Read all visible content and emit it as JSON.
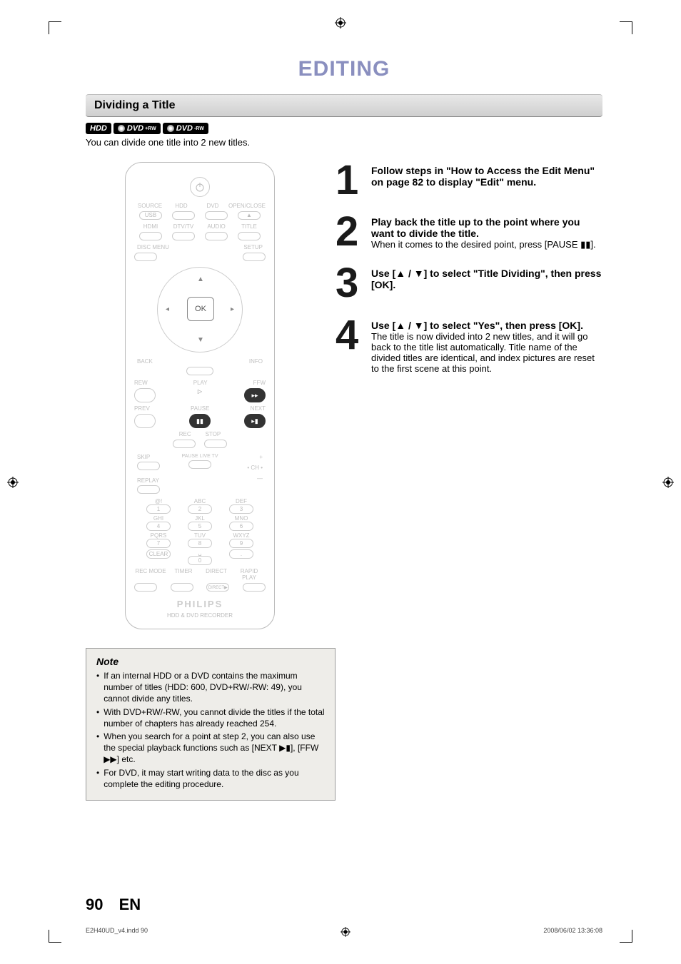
{
  "colors": {
    "page_title": "#8a8fbf",
    "step_num": "#1a1a1a",
    "section_bar_top": "#e8e8e8",
    "section_bar_bottom": "#cfcfcf",
    "note_bg": "#eeede9",
    "note_border": "#999999",
    "remote_border": "#bbbbbb",
    "remote_text": "#c0c0c0"
  },
  "page_title": "EDITING",
  "section_title": "Dividing a Title",
  "badges": [
    {
      "label": "HDD",
      "sub": "",
      "disc": false
    },
    {
      "label": "DVD",
      "sub": "+RW",
      "disc": true
    },
    {
      "label": "DVD",
      "sub": "-RW",
      "disc": true
    }
  ],
  "intro": "You can divide one title into 2 new titles.",
  "remote": {
    "row1": [
      "SOURCE",
      "HDD",
      "DVD",
      "OPEN/CLOSE"
    ],
    "row2": [
      "USB",
      "",
      "",
      "▲"
    ],
    "row3": [
      "HDMI",
      "DTV/TV",
      "AUDIO",
      "TITLE"
    ],
    "row4": [
      "DISC MENU",
      "",
      "",
      "SETUP"
    ],
    "ok": "OK",
    "row5": [
      "BACK",
      "",
      "INFO"
    ],
    "row6": [
      "REW",
      "PLAY",
      "FFW"
    ],
    "row7": [
      "PREV",
      "PAUSE",
      "NEXT"
    ],
    "row8": [
      "REC",
      "STOP"
    ],
    "sideL": [
      "SKIP",
      "REPLAY"
    ],
    "mid": "PAUSE LIVE TV",
    "sideR": [
      "+",
      "• CH •",
      "—"
    ],
    "numlabels": [
      "@!",
      "ABC",
      "DEF",
      "GHI",
      "JKL",
      "MNO",
      "PQRS",
      "TUV",
      "WXYZ",
      "",
      "␣",
      ""
    ],
    "nums": [
      "1",
      "2",
      "3",
      "4",
      "5",
      "6",
      "7",
      "8",
      "9",
      "CLEAR",
      "0",
      "."
    ],
    "bottomrow": [
      "REC MODE",
      "TIMER",
      "DIRECT",
      "RAPID PLAY"
    ],
    "direct_btn": "DIRECT▶",
    "brand": "PHILIPS",
    "model": "HDD & DVD RECORDER"
  },
  "steps": [
    {
      "num": "1",
      "lead": "Follow steps in \"How to Access the Edit Menu\" on page 82 to display \"Edit\" menu.",
      "detail": ""
    },
    {
      "num": "2",
      "lead": "Play back the title up to the point where you want to divide the title.",
      "detail": "When it comes to the desired point, press [PAUSE ▮▮]."
    },
    {
      "num": "3",
      "lead": "Use [▲ / ▼] to select \"Title Dividing\", then press [OK].",
      "detail": ""
    },
    {
      "num": "4",
      "lead": "Use [▲ / ▼] to select \"Yes\", then press [OK].",
      "detail": "The title is now divided into 2 new titles, and it will go back to the title list automatically. Title name of the divided titles are identical, and index pictures are reset to the first scene at this point."
    }
  ],
  "note": {
    "title": "Note",
    "items": [
      "If an internal HDD or a DVD contains the maximum number of titles (HDD: 600, DVD+RW/-RW: 49), you cannot divide any titles.",
      "With DVD+RW/-RW, you cannot divide the titles if the total number of chapters has already reached 254.",
      "When you search for a point at step 2, you can also use the special playback functions such as [NEXT ▶▮], [FFW ▶▶] etc.",
      "For DVD, it may start writing data to the disc as you complete the editing procedure."
    ]
  },
  "footer": {
    "page": "90",
    "lang": "EN"
  },
  "imprint": {
    "file": "E2H40UD_v4.indd   90",
    "timestamp": "2008/06/02   13:36:08"
  }
}
